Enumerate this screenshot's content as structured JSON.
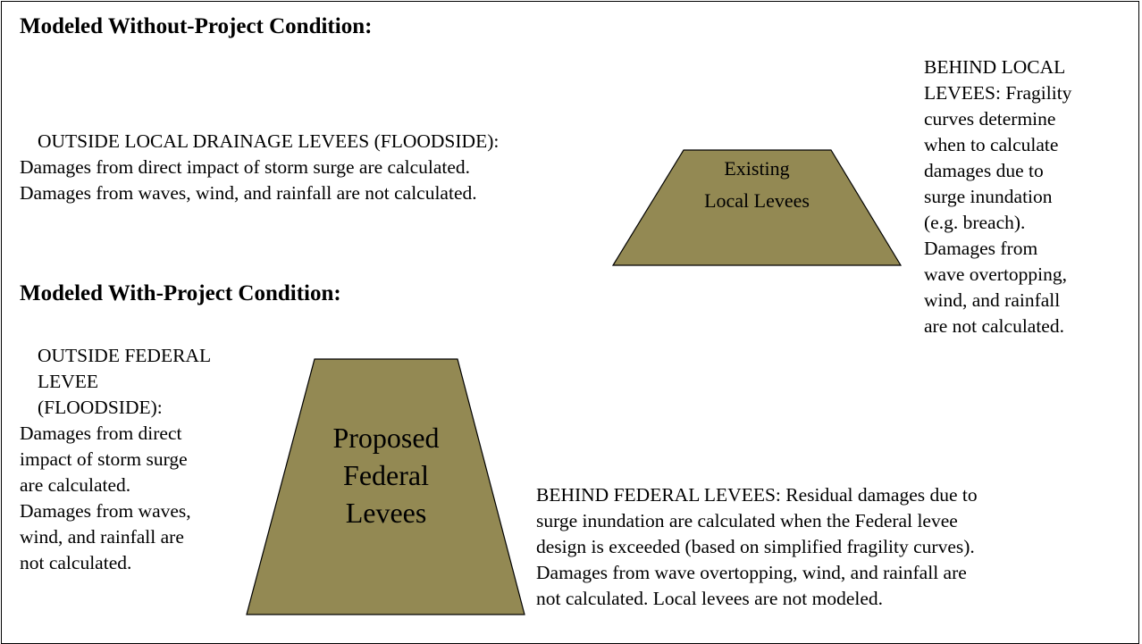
{
  "without_project": {
    "heading": "Modeled Without-Project Condition:",
    "outside": [
      "OUTSIDE LOCAL DRAINAGE LEVEES (FLOODSIDE):",
      "Damages from direct impact of storm surge are calculated.",
      "Damages from waves, wind, and rainfall are not calculated."
    ],
    "levee": [
      "Existing",
      "Local Levees"
    ],
    "behind": [
      "BEHIND LOCAL",
      "LEVEES: Fragility",
      "curves determine",
      "when to calculate",
      "damages due to",
      "surge inundation",
      "(e.g. breach).",
      "Damages from",
      "wave overtopping,",
      "wind, and rainfall",
      "are not calculated."
    ]
  },
  "with_project": {
    "heading": "Modeled With-Project Condition:",
    "outside": [
      "OUTSIDE FEDERAL",
      "LEVEE",
      "(FLOODSIDE):",
      "Damages from direct",
      "impact of storm surge",
      "are calculated.",
      "Damages from waves,",
      "wind, and rainfall are",
      "not calculated."
    ],
    "levee": [
      "Proposed",
      "Federal",
      "Levees"
    ],
    "behind": [
      "BEHIND FEDERAL LEVEES: Residual damages due to",
      "surge inundation are calculated when the Federal levee",
      "design is exceeded (based on simplified fragility curves).",
      "Damages from wave overtopping, wind, and rainfall are",
      "not calculated.  Local levees are not modeled."
    ]
  }
}
